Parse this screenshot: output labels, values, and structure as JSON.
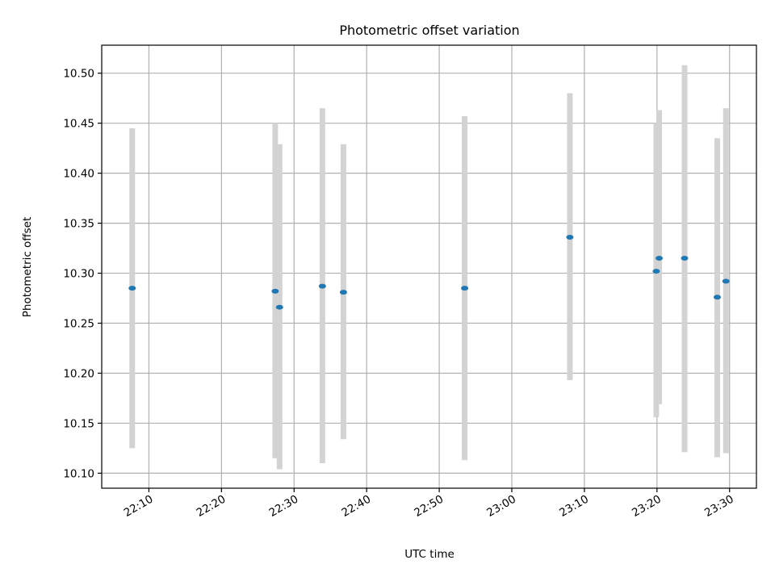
{
  "chart_data": {
    "type": "scatter",
    "title": "Photometric offset variation",
    "xlabel": "UTC time",
    "ylabel": "Photometric offset",
    "x_tick_labels": [
      "22:10",
      "22:20",
      "22:30",
      "22:40",
      "22:50",
      "23:00",
      "23:10",
      "23:20",
      "23:30"
    ],
    "x_tick_minutes": [
      0,
      10,
      20,
      30,
      40,
      50,
      60,
      70,
      80
    ],
    "y_ticks": [
      10.1,
      10.15,
      10.2,
      10.25,
      10.3,
      10.35,
      10.4,
      10.45,
      10.5
    ],
    "y_tick_labels": [
      "10.10",
      "10.15",
      "10.20",
      "10.25",
      "10.30",
      "10.35",
      "10.40",
      "10.45",
      "10.50"
    ],
    "xlim_minutes": [
      -6.5,
      83.7
    ],
    "ylim": [
      10.085,
      10.528
    ],
    "grid": true,
    "marker_color": "#1f77b4",
    "errorbar_color": "#d3d3d3",
    "points": [
      {
        "t": -2.3,
        "y": 10.285,
        "ylow": 10.125,
        "yhigh": 10.445
      },
      {
        "t": 17.4,
        "y": 10.282,
        "ylow": 10.115,
        "yhigh": 10.45
      },
      {
        "t": 18.0,
        "y": 10.266,
        "ylow": 10.104,
        "yhigh": 10.429
      },
      {
        "t": 23.9,
        "y": 10.287,
        "ylow": 10.11,
        "yhigh": 10.465
      },
      {
        "t": 26.8,
        "y": 10.281,
        "ylow": 10.134,
        "yhigh": 10.429
      },
      {
        "t": 43.5,
        "y": 10.285,
        "ylow": 10.113,
        "yhigh": 10.457
      },
      {
        "t": 58.0,
        "y": 10.336,
        "ylow": 10.193,
        "yhigh": 10.48
      },
      {
        "t": 69.9,
        "y": 10.302,
        "ylow": 10.156,
        "yhigh": 10.45
      },
      {
        "t": 70.3,
        "y": 10.315,
        "ylow": 10.169,
        "yhigh": 10.463
      },
      {
        "t": 73.8,
        "y": 10.315,
        "ylow": 10.121,
        "yhigh": 10.508
      },
      {
        "t": 78.3,
        "y": 10.276,
        "ylow": 10.116,
        "yhigh": 10.435
      },
      {
        "t": 79.5,
        "y": 10.292,
        "ylow": 10.12,
        "yhigh": 10.465
      }
    ]
  }
}
